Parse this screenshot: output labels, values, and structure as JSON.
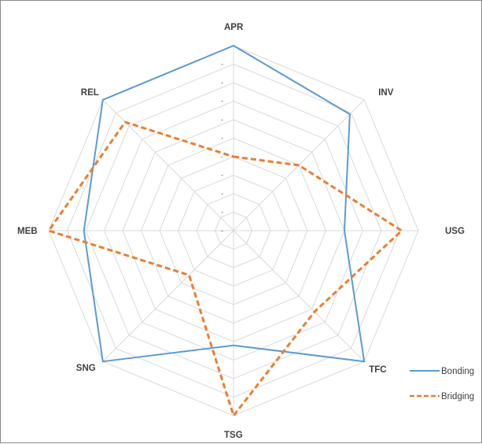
{
  "chart_data": {
    "type": "radar",
    "axes": [
      "APR",
      "INV",
      "USG",
      "TFC",
      "TSG",
      "SNG",
      "MEB",
      "REL"
    ],
    "rmax": 10,
    "rings": 10,
    "tick_label": "-",
    "series": [
      {
        "name": "Bonding",
        "values": [
          10.0,
          8.9,
          6.0,
          10.0,
          6.2,
          10.0,
          8.1,
          10.0
        ],
        "color": "#5b9bd5",
        "dash": "solid"
      },
      {
        "name": "Bridging",
        "values": [
          4.0,
          5.0,
          9.1,
          6.2,
          10.0,
          3.4,
          10.0,
          8.3
        ],
        "color": "#ed7d31",
        "dash": "dashed"
      }
    ],
    "grid_color": "#d9d9d9",
    "legend_position": "right-bottom"
  }
}
